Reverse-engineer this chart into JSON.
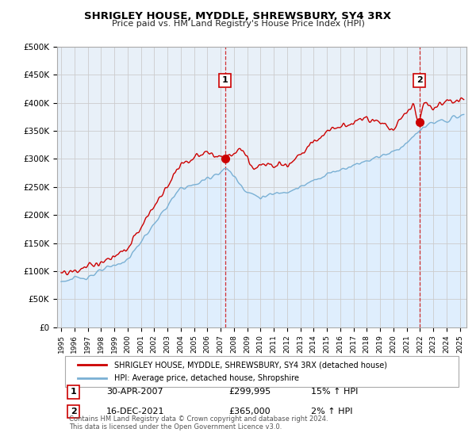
{
  "title": "SHRIGLEY HOUSE, MYDDLE, SHREWSBURY, SY4 3RX",
  "subtitle": "Price paid vs. HM Land Registry's House Price Index (HPI)",
  "ylabel_ticks": [
    "£0",
    "£50K",
    "£100K",
    "£150K",
    "£200K",
    "£250K",
    "£300K",
    "£350K",
    "£400K",
    "£450K",
    "£500K"
  ],
  "ytick_values": [
    0,
    50000,
    100000,
    150000,
    200000,
    250000,
    300000,
    350000,
    400000,
    450000,
    500000
  ],
  "ylim": [
    0,
    500000
  ],
  "xlim_start": 1994.7,
  "xlim_end": 2025.5,
  "red_line_color": "#cc0000",
  "blue_line_color": "#7ab0d4",
  "fill_color": "#ddeeff",
  "marker1_date": 2007.33,
  "marker1_value": 299995,
  "marker1_label": "1",
  "marker2_date": 2021.96,
  "marker2_value": 365000,
  "marker2_label": "2",
  "legend_line1": "SHRIGLEY HOUSE, MYDDLE, SHREWSBURY, SY4 3RX (detached house)",
  "legend_line2": "HPI: Average price, detached house, Shropshire",
  "annotation1_date": "30-APR-2007",
  "annotation1_price": "£299,995",
  "annotation1_hpi": "15% ↑ HPI",
  "annotation2_date": "16-DEC-2021",
  "annotation2_price": "£365,000",
  "annotation2_hpi": "2% ↑ HPI",
  "footer": "Contains HM Land Registry data © Crown copyright and database right 2024.\nThis data is licensed under the Open Government Licence v3.0.",
  "bg_color": "#ffffff",
  "grid_color": "#cccccc",
  "plot_bg_color": "#e8f0f8"
}
